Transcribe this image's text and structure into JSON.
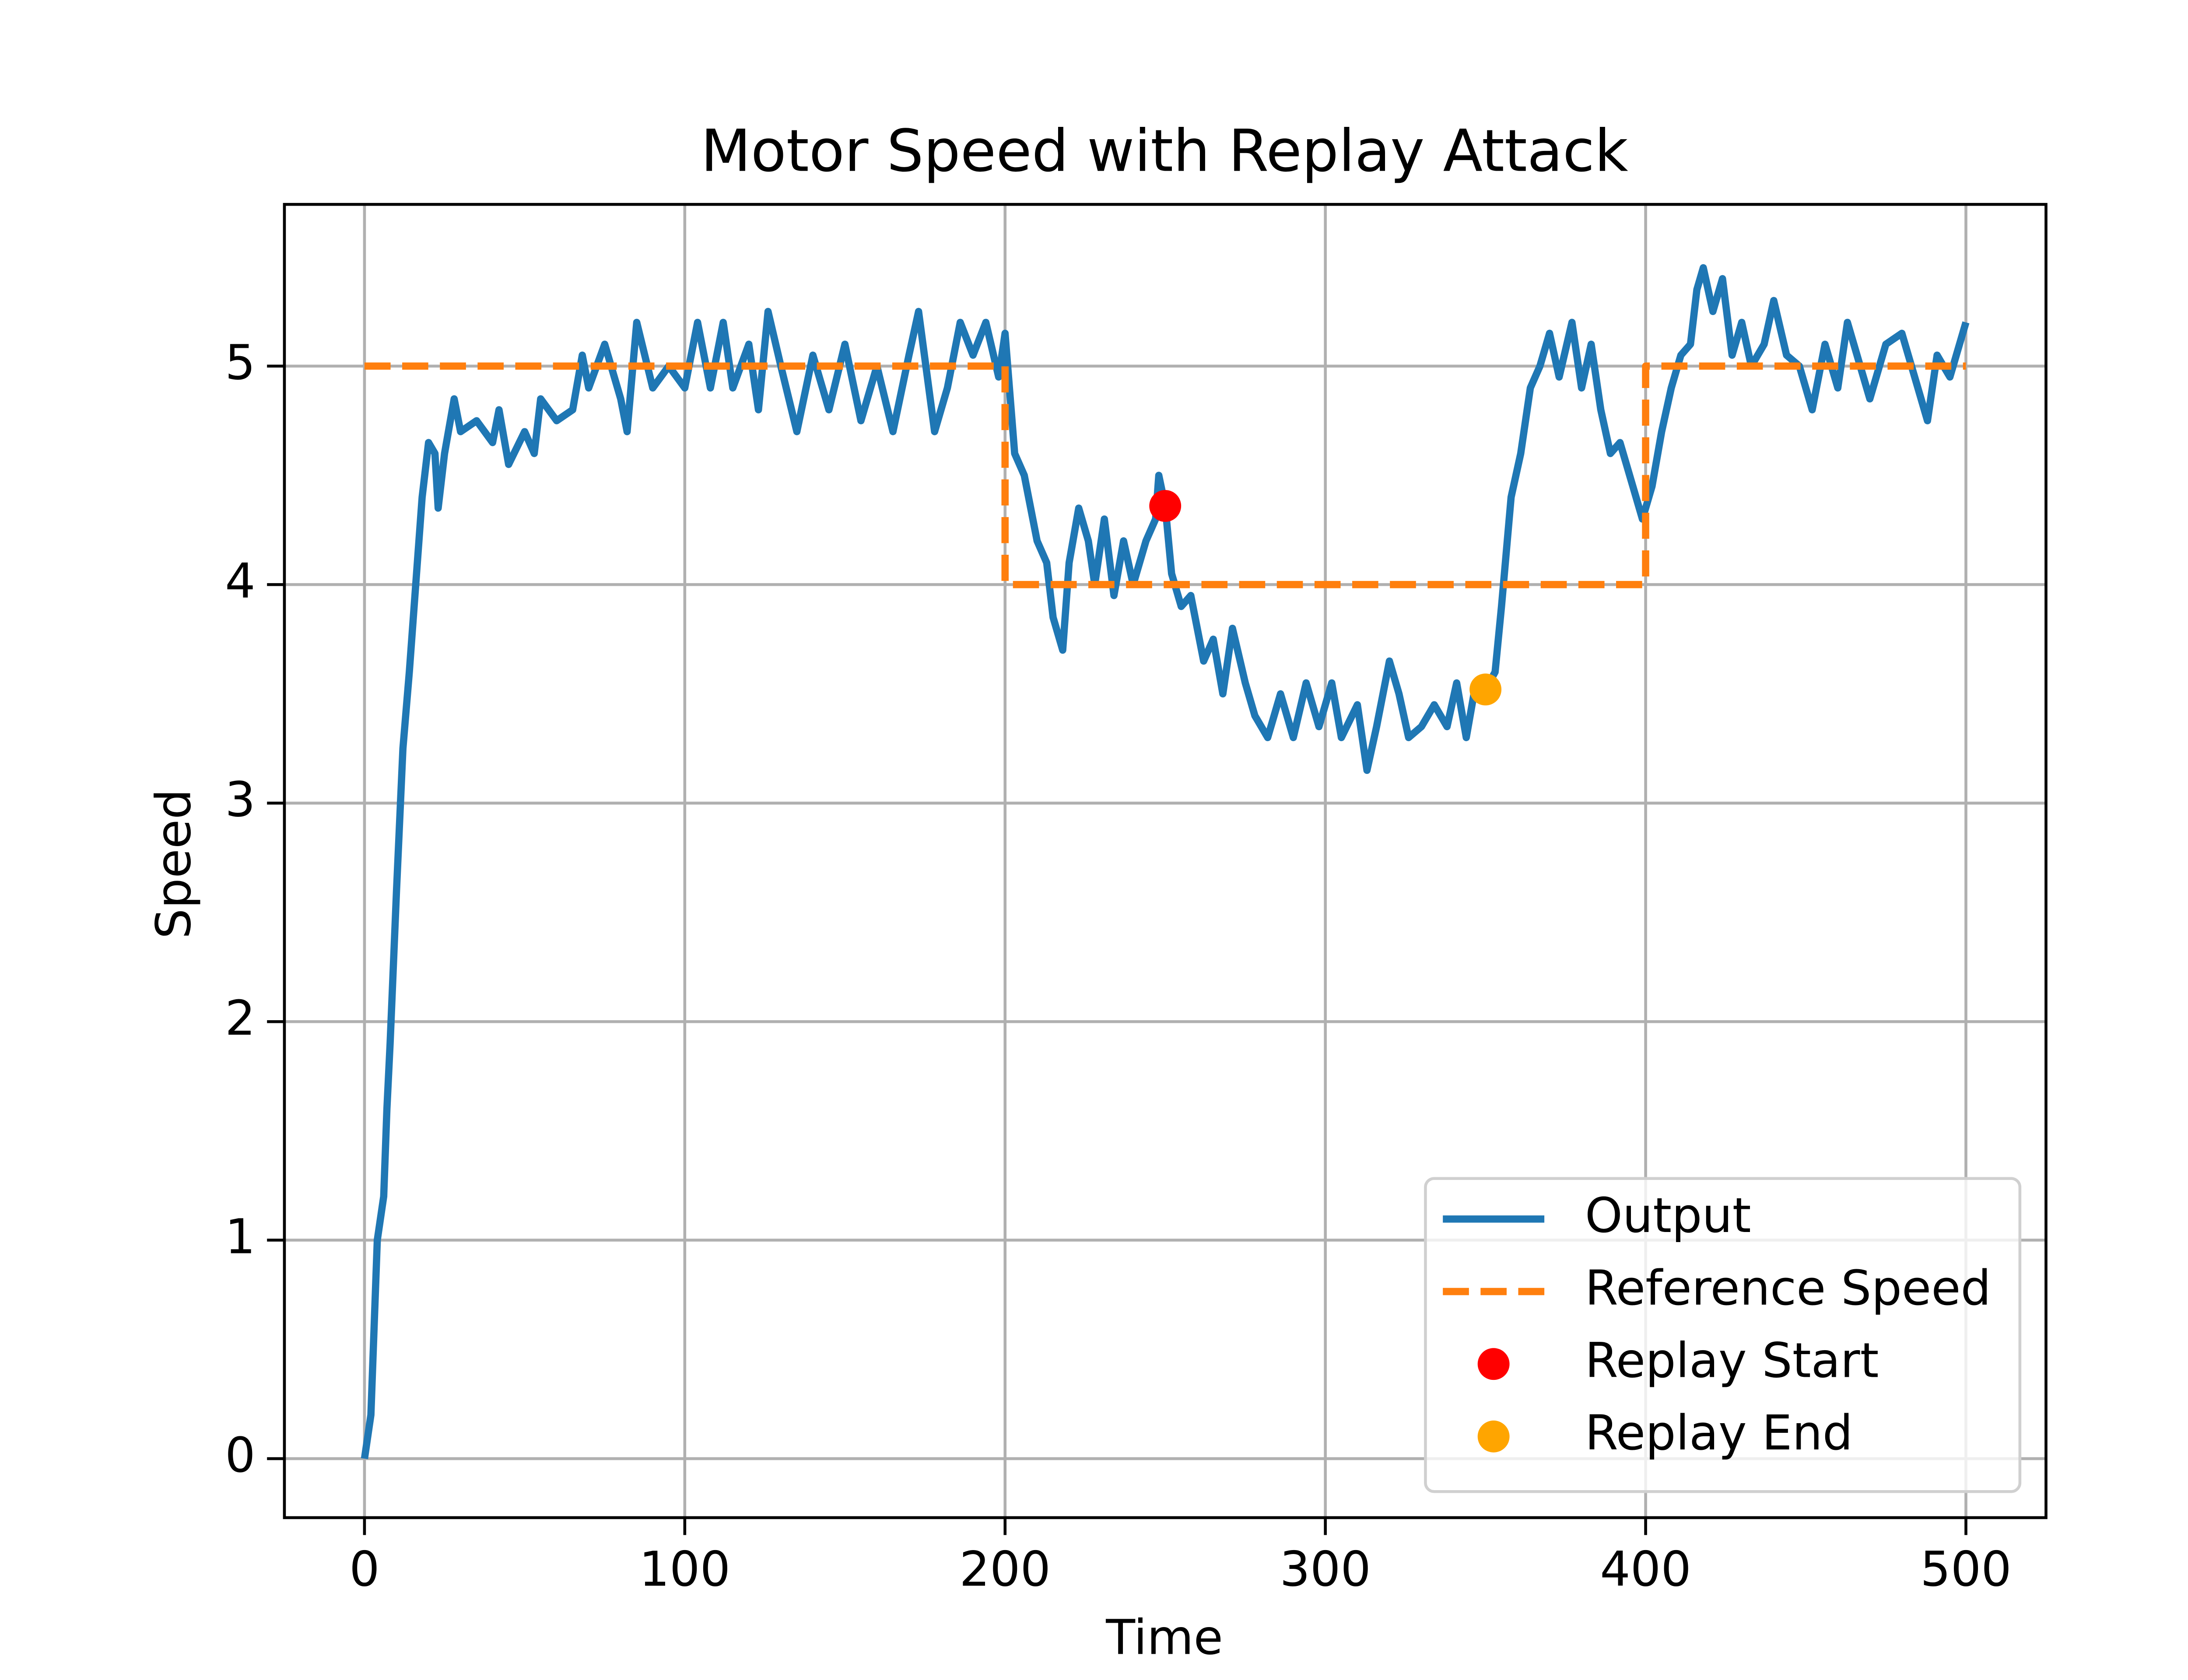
{
  "chart_data": {
    "type": "line",
    "title": "Motor Speed with Replay Attack",
    "xlabel": "Time",
    "ylabel": "Speed",
    "xlim": [
      -25,
      525
    ],
    "xticks": [
      0,
      100,
      200,
      300,
      400,
      500
    ],
    "ylim": [
      -0.27,
      5.74
    ],
    "yticks": [
      0,
      1,
      2,
      3,
      4,
      5
    ],
    "grid": true,
    "legend": "lower right",
    "series": [
      {
        "name": "Output",
        "color": "#1f77b4",
        "style": "solid",
        "x": [
          0,
          2,
          4,
          6,
          7,
          8,
          10,
          12,
          14,
          16,
          18,
          20,
          22,
          23,
          25,
          28,
          30,
          35,
          40,
          42,
          45,
          50,
          53,
          55,
          60,
          65,
          68,
          70,
          75,
          80,
          82,
          85,
          90,
          95,
          100,
          104,
          108,
          112,
          115,
          120,
          123,
          126,
          130,
          135,
          140,
          145,
          150,
          155,
          160,
          165,
          170,
          173,
          178,
          182,
          186,
          190,
          194,
          198,
          200,
          203,
          206,
          210,
          213,
          215,
          218,
          220,
          223,
          226,
          228,
          231,
          234,
          237,
          240,
          244,
          247,
          248,
          250,
          252,
          255,
          258,
          262,
          265,
          268,
          271,
          275,
          278,
          282,
          286,
          290,
          294,
          298,
          302,
          305,
          310,
          313,
          316,
          320,
          323,
          326,
          330,
          334,
          338,
          341,
          344,
          347,
          350,
          353,
          355,
          358,
          361,
          364,
          367,
          370,
          373,
          377,
          380,
          383,
          386,
          389,
          392,
          396,
          399,
          402,
          405,
          408,
          411,
          414,
          416,
          418,
          421,
          424,
          427,
          430,
          433,
          437,
          440,
          444,
          448,
          452,
          456,
          460,
          463,
          467,
          470,
          475,
          480,
          484,
          488,
          491,
          495,
          498,
          500
        ],
        "values": [
          0,
          0.2,
          1.0,
          1.2,
          1.6,
          1.9,
          2.6,
          3.25,
          3.6,
          4.0,
          4.4,
          4.65,
          4.6,
          4.35,
          4.6,
          4.85,
          4.7,
          4.75,
          4.65,
          4.8,
          4.55,
          4.7,
          4.6,
          4.85,
          4.75,
          4.8,
          5.05,
          4.9,
          5.1,
          4.85,
          4.7,
          5.2,
          4.9,
          5.0,
          4.9,
          5.2,
          4.9,
          5.2,
          4.9,
          5.1,
          4.8,
          5.25,
          5.0,
          4.7,
          5.05,
          4.8,
          5.1,
          4.75,
          5.0,
          4.7,
          5.05,
          5.25,
          4.7,
          4.9,
          5.2,
          5.05,
          5.2,
          4.95,
          5.15,
          4.6,
          4.5,
          4.2,
          4.1,
          3.85,
          3.7,
          4.1,
          4.35,
          4.2,
          4.0,
          4.3,
          3.95,
          4.2,
          4.0,
          4.2,
          4.3,
          4.5,
          4.36,
          4.05,
          3.9,
          3.95,
          3.65,
          3.75,
          3.5,
          3.8,
          3.55,
          3.4,
          3.3,
          3.5,
          3.3,
          3.55,
          3.35,
          3.55,
          3.3,
          3.45,
          3.15,
          3.35,
          3.65,
          3.5,
          3.3,
          3.35,
          3.45,
          3.35,
          3.55,
          3.3,
          3.55,
          3.52,
          3.6,
          3.9,
          4.4,
          4.6,
          4.9,
          5.0,
          5.15,
          4.95,
          5.2,
          4.9,
          5.1,
          4.8,
          4.6,
          4.65,
          4.45,
          4.3,
          4.45,
          4.7,
          4.9,
          5.05,
          5.1,
          5.35,
          5.45,
          5.25,
          5.4,
          5.05,
          5.2,
          5.0,
          5.1,
          5.3,
          5.05,
          5.0,
          4.8,
          5.1,
          4.9,
          5.2,
          5.0,
          4.85,
          5.1,
          5.15,
          4.95,
          4.75,
          5.05,
          4.95,
          5.1,
          5.2
        ]
      },
      {
        "name": "Reference Speed",
        "color": "#ff7f0e",
        "style": "dashed",
        "x": [
          0,
          200,
          200,
          400,
          400,
          500
        ],
        "values": [
          5,
          5,
          4,
          4,
          5,
          5
        ]
      },
      {
        "name": "Replay Start",
        "color": "#ff0000",
        "style": "marker",
        "x": [
          250
        ],
        "values": [
          4.36
        ]
      },
      {
        "name": "Replay End",
        "color": "#ffa500",
        "style": "marker",
        "x": [
          350
        ],
        "values": [
          3.52
        ]
      }
    ]
  }
}
